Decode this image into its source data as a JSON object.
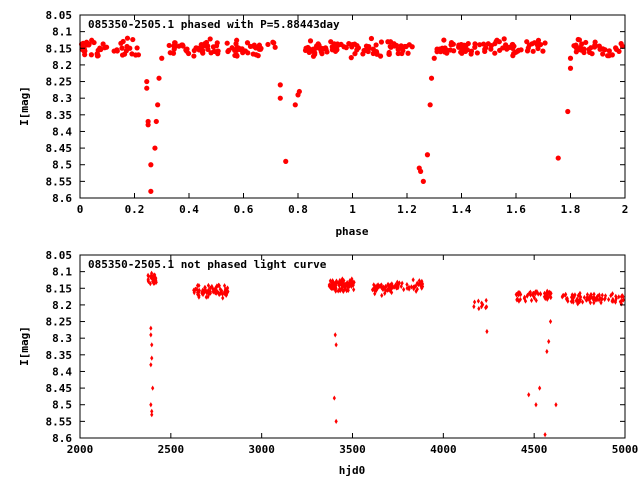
{
  "chart_data": [
    {
      "type": "scatter",
      "title": "085350-2505.1 phased with P=5.88443day",
      "xlabel": "phase",
      "ylabel": "I[mag]",
      "xlim": [
        0,
        2
      ],
      "ylim": [
        8.6,
        8.05
      ],
      "y_inverted": true,
      "x_ticks": [
        "0",
        "0.2",
        "0.4",
        "0.6",
        "0.8",
        "1",
        "1.2",
        "1.4",
        "1.6",
        "1.8",
        "2"
      ],
      "y_ticks": [
        "8.05",
        "8.1",
        "8.15",
        "8.2",
        "8.25",
        "8.3",
        "8.35",
        "8.4",
        "8.45",
        "8.5",
        "8.55",
        "8.6"
      ],
      "marker_color": "#ff0000",
      "marker": "filled-circle",
      "dips": [
        {
          "x": 0.245,
          "y": 8.25
        },
        {
          "x": 0.245,
          "y": 8.27
        },
        {
          "x": 0.25,
          "y": 8.37
        },
        {
          "x": 0.25,
          "y": 8.38
        },
        {
          "x": 0.26,
          "y": 8.5
        },
        {
          "x": 0.26,
          "y": 8.58
        },
        {
          "x": 0.275,
          "y": 8.45
        },
        {
          "x": 0.28,
          "y": 8.37
        },
        {
          "x": 0.285,
          "y": 8.32
        },
        {
          "x": 0.29,
          "y": 8.24
        },
        {
          "x": 0.3,
          "y": 8.18
        },
        {
          "x": 0.735,
          "y": 8.26
        },
        {
          "x": 0.735,
          "y": 8.3
        },
        {
          "x": 0.755,
          "y": 8.49
        },
        {
          "x": 0.79,
          "y": 8.32
        },
        {
          "x": 0.8,
          "y": 8.29
        },
        {
          "x": 0.805,
          "y": 8.28
        },
        {
          "x": 1.245,
          "y": 8.51
        },
        {
          "x": 1.25,
          "y": 8.52
        },
        {
          "x": 1.26,
          "y": 8.55
        },
        {
          "x": 1.275,
          "y": 8.47
        },
        {
          "x": 1.285,
          "y": 8.32
        },
        {
          "x": 1.29,
          "y": 8.24
        },
        {
          "x": 1.3,
          "y": 8.18
        },
        {
          "x": 1.755,
          "y": 8.48
        },
        {
          "x": 1.79,
          "y": 8.34
        },
        {
          "x": 1.8,
          "y": 8.21
        },
        {
          "x": 1.8,
          "y": 8.18
        }
      ],
      "baseline_mag": 8.15,
      "baseline_scatter": 0.035
    },
    {
      "type": "scatter",
      "title": "085350-2505.1 not phased light curve",
      "xlabel": "hjd0",
      "ylabel": "I[mag]",
      "xlim": [
        2000,
        5000
      ],
      "ylim": [
        8.6,
        8.05
      ],
      "y_inverted": true,
      "x_ticks": [
        "2000",
        "2500",
        "3000",
        "3500",
        "4000",
        "4500",
        "5000"
      ],
      "y_ticks": [
        "8.05",
        "8.1",
        "8.15",
        "8.2",
        "8.25",
        "8.3",
        "8.35",
        "8.4",
        "8.45",
        "8.5",
        "8.55",
        "8.6"
      ],
      "marker_color": "#ff0000",
      "marker": "small-diamond",
      "seasons": [
        {
          "x_range": [
            2370,
            2420
          ],
          "mag": 8.12,
          "n": 30
        },
        {
          "x_range": [
            2620,
            2820
          ],
          "mag": 8.16,
          "n": 80
        },
        {
          "x_range": [
            3370,
            3510
          ],
          "mag": 8.14,
          "n": 90
        },
        {
          "x_range": [
            3610,
            3720
          ],
          "mag": 8.15,
          "n": 40
        },
        {
          "x_range": [
            3700,
            3890
          ],
          "mag": 8.14,
          "n": 45
        },
        {
          "x_range": [
            4160,
            4250
          ],
          "mag": 8.2,
          "n": 10
        },
        {
          "x_range": [
            4400,
            4600
          ],
          "mag": 8.17,
          "n": 55
        },
        {
          "x_range": [
            4650,
            5000
          ],
          "mag": 8.18,
          "n": 90
        }
      ],
      "dips": [
        {
          "x": 2390,
          "y": 8.27
        },
        {
          "x": 2390,
          "y": 8.29
        },
        {
          "x": 2395,
          "y": 8.32
        },
        {
          "x": 2395,
          "y": 8.36
        },
        {
          "x": 2390,
          "y": 8.38
        },
        {
          "x": 2400,
          "y": 8.45
        },
        {
          "x": 2390,
          "y": 8.5
        },
        {
          "x": 2395,
          "y": 8.52
        },
        {
          "x": 2395,
          "y": 8.53
        },
        {
          "x": 3405,
          "y": 8.29
        },
        {
          "x": 3410,
          "y": 8.32
        },
        {
          "x": 3400,
          "y": 8.48
        },
        {
          "x": 3410,
          "y": 8.55
        },
        {
          "x": 4240,
          "y": 8.28
        },
        {
          "x": 4470,
          "y": 8.47
        },
        {
          "x": 4510,
          "y": 8.5
        },
        {
          "x": 4530,
          "y": 8.45
        },
        {
          "x": 4560,
          "y": 8.59
        },
        {
          "x": 4570,
          "y": 8.34
        },
        {
          "x": 4580,
          "y": 8.31
        },
        {
          "x": 4590,
          "y": 8.25
        },
        {
          "x": 4620,
          "y": 8.5
        }
      ]
    }
  ]
}
